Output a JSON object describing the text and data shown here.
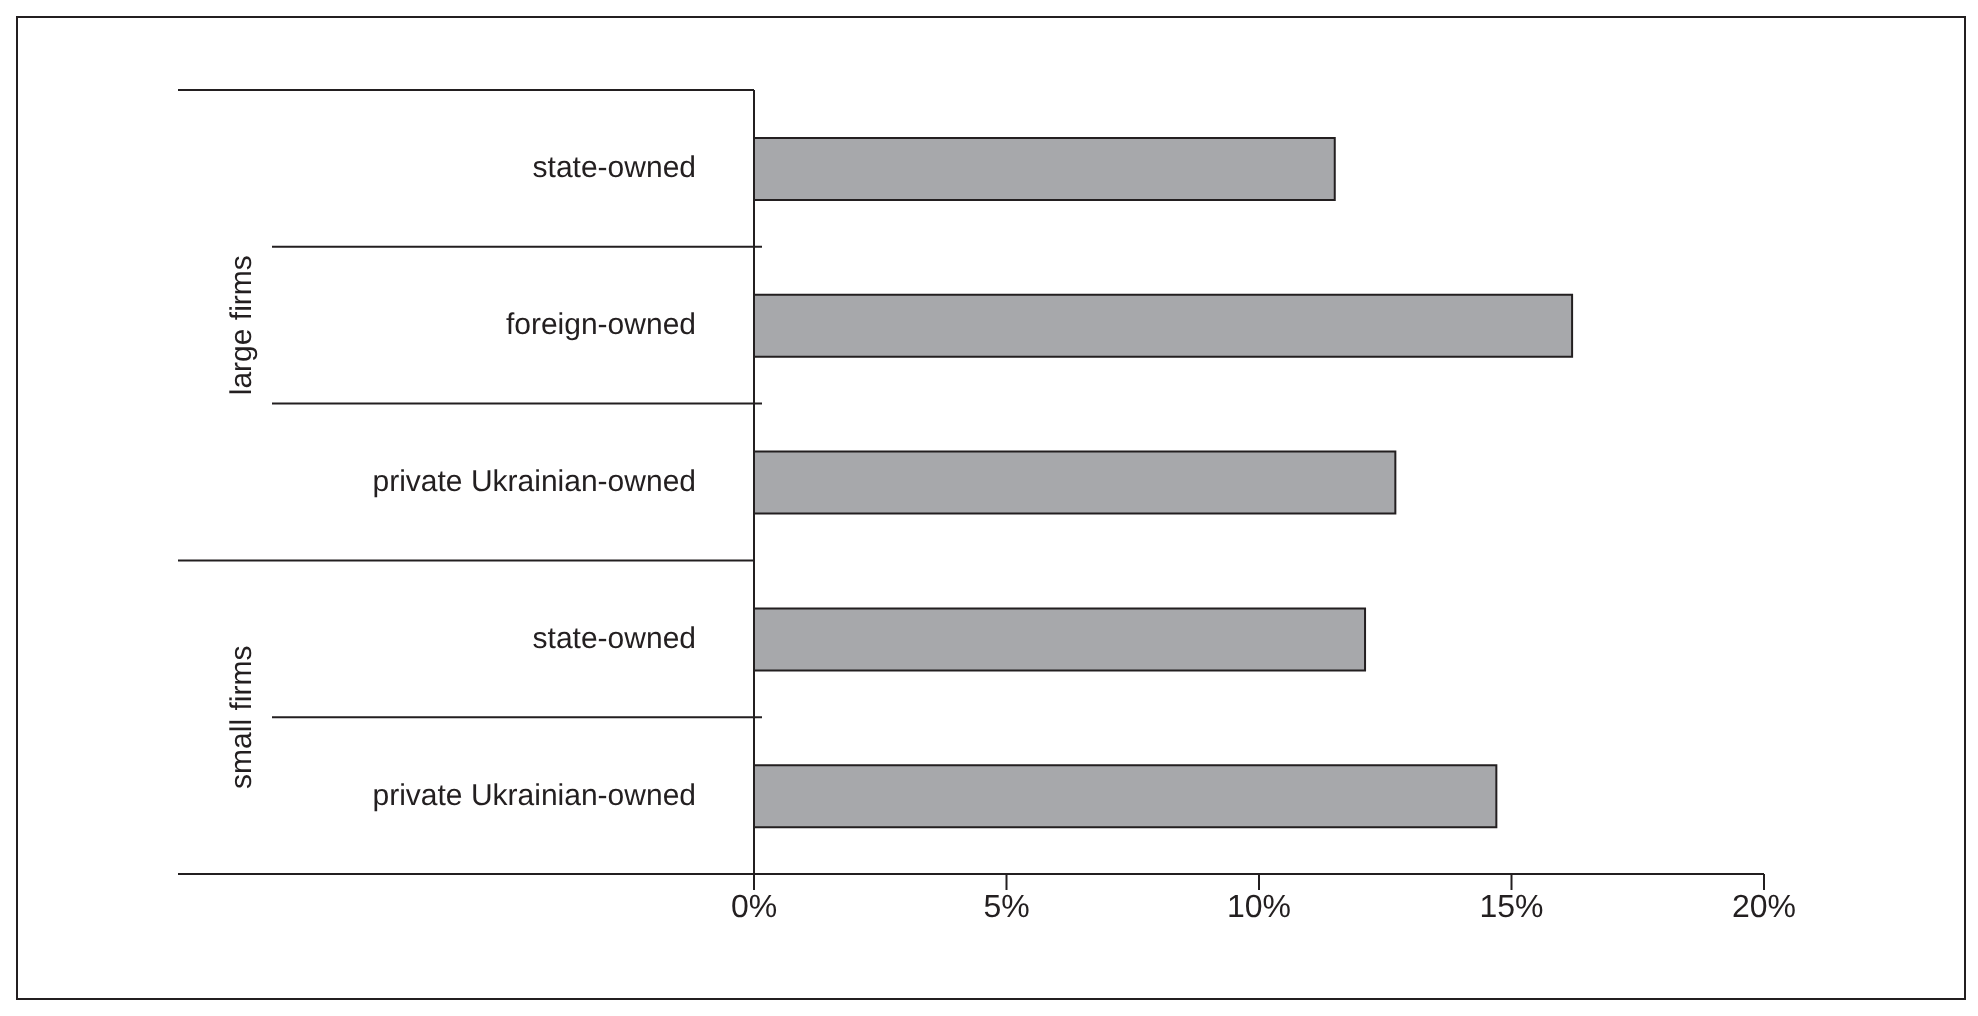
{
  "chart_data": {
    "type": "bar",
    "orientation": "horizontal",
    "categories": [
      "state-owned",
      "foreign-owned",
      "private Ukrainian-owned",
      "state-owned",
      "private Ukrainian-owned"
    ],
    "values": [
      11.5,
      16.2,
      12.7,
      12.1,
      14.7
    ],
    "color": "#a7a8ab",
    "xlim": [
      0,
      20
    ],
    "xticks": [
      {
        "value": 0,
        "label": "0%"
      },
      {
        "value": 5,
        "label": "5%"
      },
      {
        "value": 10,
        "label": "10%"
      },
      {
        "value": 15,
        "label": "15%"
      },
      {
        "value": 20,
        "label": "20%"
      }
    ],
    "annotations": [
      "large firms",
      "small firms"
    ],
    "grid": false,
    "legend": false
  }
}
